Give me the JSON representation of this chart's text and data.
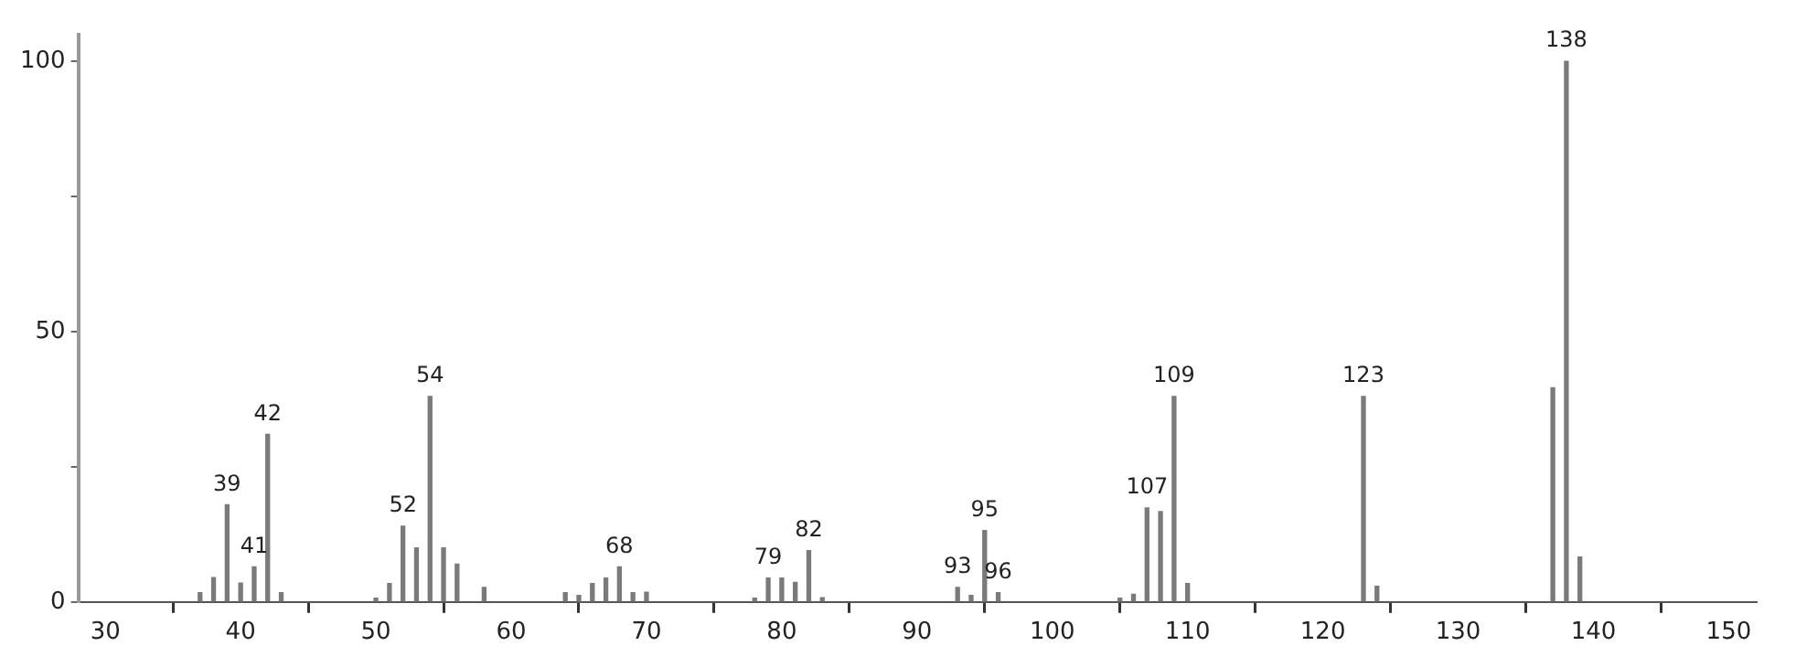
{
  "chart_data": {
    "type": "bar",
    "x": [
      37,
      38,
      39,
      40,
      41,
      42,
      43,
      50,
      51,
      52,
      53,
      54,
      55,
      56,
      58,
      64,
      65,
      66,
      67,
      68,
      69,
      70,
      78,
      79,
      80,
      81,
      82,
      83,
      93,
      94,
      95,
      96,
      105,
      106,
      107,
      108,
      109,
      110,
      123,
      124,
      137,
      138,
      139
    ],
    "series": [
      {
        "color": "#7a7a7a",
        "values": [
          1.7,
          4.5,
          18,
          3.5,
          6.5,
          31,
          1.7,
          0.7,
          3.4,
          14,
          10,
          38,
          10,
          7,
          2.7,
          1.7,
          1.2,
          3.4,
          4.4,
          6.5,
          1.7,
          1.8,
          0.7,
          4.4,
          4.4,
          3.6,
          9.5,
          0.8,
          2.7,
          1.2,
          13.2,
          1.7,
          0.7,
          1.4,
          17.4,
          16.7,
          38,
          3.4,
          38,
          2.9,
          39.6,
          100,
          8.3
        ]
      }
    ],
    "xlim": [
      28,
      152
    ],
    "ylim": [
      0,
      105
    ],
    "xticks": [
      30,
      40,
      50,
      60,
      70,
      80,
      90,
      100,
      110,
      120,
      130,
      140,
      150
    ],
    "yticks": [
      0,
      {
        "value": 25,
        "label": null
      },
      50,
      {
        "value": 75,
        "label": null
      },
      100
    ],
    "grid": false,
    "legend": false,
    "annotations": [
      {
        "text": "39",
        "x": 39,
        "y": 18
      },
      {
        "text": "41",
        "x": 41,
        "y": 6.5
      },
      {
        "text": "42",
        "x": 42,
        "y": 31
      },
      {
        "text": "52",
        "x": 52,
        "y": 14
      },
      {
        "text": "54",
        "x": 54,
        "y": 38
      },
      {
        "text": "68",
        "x": 68,
        "y": 6.5
      },
      {
        "text": "79",
        "x": 79,
        "y": 4.4
      },
      {
        "text": "82",
        "x": 82,
        "y": 9.5
      },
      {
        "text": "93",
        "x": 93,
        "y": 2.7
      },
      {
        "text": "95",
        "x": 95,
        "y": 13.2
      },
      {
        "text": "96",
        "x": 96,
        "y": 1.7
      },
      {
        "text": "107",
        "x": 107,
        "y": 17.4
      },
      {
        "text": "109",
        "x": 109,
        "y": 38
      },
      {
        "text": "123",
        "x": 123,
        "y": 38
      },
      {
        "text": "138",
        "x": 138,
        "y": 100
      }
    ]
  }
}
